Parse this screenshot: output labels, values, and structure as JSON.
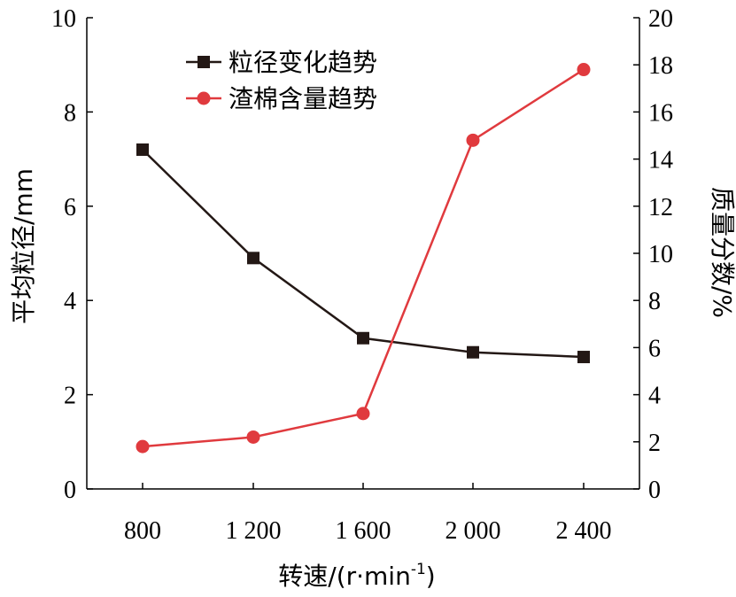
{
  "chart_data": {
    "type": "line",
    "xlabel": "转速/(r·min",
    "xlabel_sup": "-1",
    "xlabel_close": ")",
    "categories": [
      "800",
      "1 200",
      "1 600",
      "2 000",
      "2 400"
    ],
    "y_left": {
      "label": "平均粒径/mm",
      "lim": [
        0,
        10
      ],
      "ticks": [
        "0",
        "2",
        "4",
        "6",
        "8",
        "10"
      ]
    },
    "y_right": {
      "label": "质量分数/%",
      "lim": [
        0,
        20
      ],
      "ticks": [
        "0",
        "2",
        "4",
        "6",
        "8",
        "10",
        "12",
        "14",
        "16",
        "18",
        "20"
      ]
    },
    "series": [
      {
        "name": "粒径变化趋势",
        "axis": "left",
        "marker": "square",
        "color": "#231815",
        "values": [
          7.2,
          4.9,
          3.2,
          2.9,
          2.8
        ]
      },
      {
        "name": "渣棉含量趋势",
        "axis": "right",
        "marker": "circle",
        "color": "#e03a3e",
        "values": [
          1.8,
          2.2,
          3.2,
          14.8,
          17.8
        ]
      }
    ],
    "legend": "top-left",
    "grid": false
  }
}
